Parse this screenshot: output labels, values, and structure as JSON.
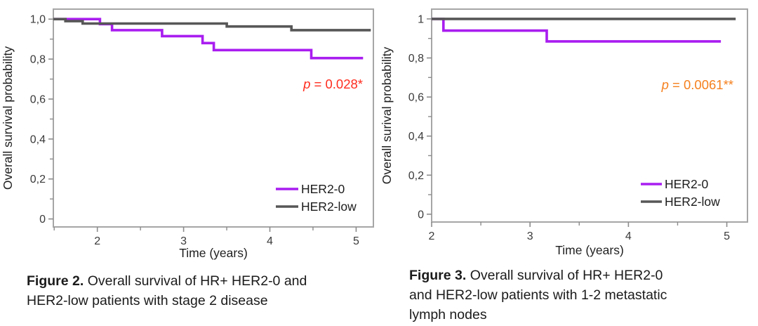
{
  "colors": {
    "her2_0": "#a91df0",
    "her2_low": "#575757",
    "p_left": "#ff2d1f",
    "p_right": "#f5801e",
    "axis_frame": "#a6a6a6",
    "tick": "#8c8c8c",
    "tick_label": "#3a3a3a",
    "axis_title": "#1f1f1f",
    "legend_text": "#1b1b1b"
  },
  "chart_data": [
    {
      "type": "line",
      "subtype": "kaplan-meier-step",
      "title": "",
      "xlabel": "Time (years)",
      "ylabel": "Overall survival probability",
      "xlim": [
        1.49,
        5.2
      ],
      "ylim": [
        -0.04,
        1.05
      ],
      "xticks": [
        2,
        3,
        4,
        5
      ],
      "xticks_minor": [
        1.5,
        2.5,
        3.5,
        4.5
      ],
      "yticks": [
        0,
        0.2,
        0.4,
        0.6,
        0.8,
        1
      ],
      "ytick_labels": [
        "0",
        "0,2",
        "0,4",
        "0,6",
        "0,8",
        "1,0"
      ],
      "yticks_minor": [
        0.1,
        0.3,
        0.5,
        0.7,
        0.9
      ],
      "grid": false,
      "legend": {
        "position": "inside-bottom-right"
      },
      "annotation": {
        "prefix": "p",
        "rest": " = 0.028*",
        "color": "#ff2d1f"
      },
      "series": [
        {
          "name": "HER2-0",
          "color": "#a91df0",
          "points": [
            [
              1.5,
              1.0
            ],
            [
              2.03,
              0.975
            ],
            [
              2.17,
              0.945
            ],
            [
              2.75,
              0.915
            ],
            [
              3.22,
              0.88
            ],
            [
              3.35,
              0.845
            ],
            [
              4.48,
              0.805
            ]
          ],
          "end_x": 5.08
        },
        {
          "name": "HER2-low",
          "color": "#575757",
          "points": [
            [
              1.49,
              1.0
            ],
            [
              1.63,
              0.99
            ],
            [
              1.83,
              0.978
            ],
            [
              3.5,
              0.963
            ],
            [
              4.25,
              0.945
            ]
          ],
          "end_x": 5.17
        }
      ],
      "caption": {
        "label": "Figure 2.",
        "line1": " Overall survival of HR+ HER2-0 and",
        "line2": "HER2-low patients with stage 2 disease",
        "line3": ""
      }
    },
    {
      "type": "line",
      "subtype": "kaplan-meier-step",
      "title": "",
      "xlabel": "Time (years)",
      "ylabel": "Overall surival probability",
      "xlim": [
        2.0,
        5.21
      ],
      "ylim": [
        -0.04,
        1.05
      ],
      "xticks": [
        2,
        3,
        4,
        5
      ],
      "xticks_minor": [
        2.5,
        3.5,
        4.5
      ],
      "yticks": [
        0,
        0.2,
        0.4,
        0.6,
        0.8,
        1
      ],
      "ytick_labels": [
        "0",
        "0,2",
        "0,4",
        "0,6",
        "0,8",
        "1"
      ],
      "yticks_minor": [
        0.1,
        0.3,
        0.5,
        0.7,
        0.9
      ],
      "grid": false,
      "legend": {
        "position": "inside-bottom-right"
      },
      "annotation": {
        "prefix": "p",
        "rest": " = 0.0061**",
        "color": "#f5801e"
      },
      "series": [
        {
          "name": "HER2-0",
          "color": "#a91df0",
          "points": [
            [
              2.0,
              1.0
            ],
            [
              2.12,
              0.94
            ],
            [
              3.17,
              0.885
            ]
          ],
          "end_x": 4.94
        },
        {
          "name": "HER2-low",
          "color": "#575757",
          "points": [
            [
              2.0,
              1.0
            ]
          ],
          "end_x": 5.09
        }
      ],
      "caption": {
        "label": "Figure 3.",
        "line1": " Overall survival of HR+ HER2-0",
        "line2": "and HER2-low patients with 1-2 metastatic",
        "line3": "lymph nodes"
      }
    }
  ]
}
